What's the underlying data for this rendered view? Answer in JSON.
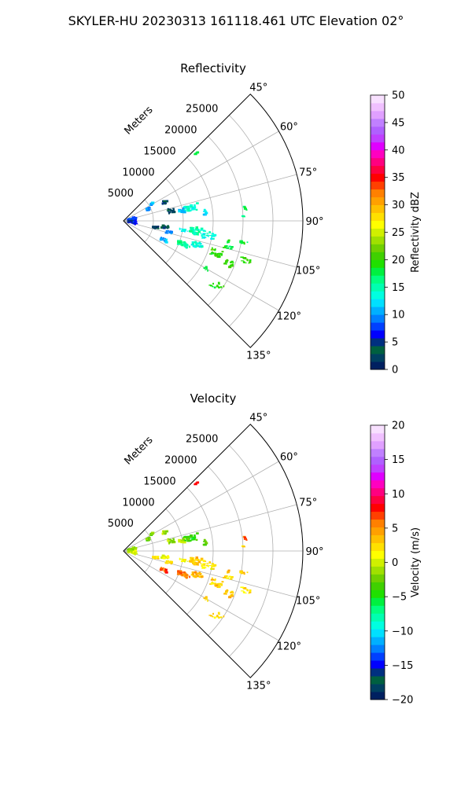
{
  "figure": {
    "suptitle": "SKYLER-HU  20230313  161118.461 UTC Elevation 02°"
  },
  "chart_data": [
    {
      "type": "scatter",
      "subtype": "polar-ppi-sector",
      "title": "Reflectivity",
      "radius_label": "Meters",
      "theta_range_deg": [
        45,
        135
      ],
      "theta_ticks": [
        "45°",
        "60°",
        "75°",
        "90°",
        "105°",
        "120°",
        "135°"
      ],
      "r_range": [
        0,
        30000
      ],
      "r_ticks": [
        5000,
        10000,
        15000,
        20000,
        25000
      ],
      "r_tick_labels": [
        "5000",
        "10000",
        "15000",
        "20000",
        "25000"
      ],
      "grid": true,
      "colorbar": {
        "label": "Reflectivity dBZ",
        "range": [
          0,
          50
        ],
        "ticks": [
          "0",
          "5",
          "10",
          "15",
          "20",
          "25",
          "30",
          "35",
          "40",
          "45",
          "50"
        ],
        "colors": [
          "#002060",
          "#004060",
          "#006040",
          "#003080",
          "#0000ff",
          "#0040ff",
          "#0080ff",
          "#00b0ff",
          "#00e0ff",
          "#00ffe0",
          "#00ffb0",
          "#00ff80",
          "#00f040",
          "#20e000",
          "#40d000",
          "#70d000",
          "#a0e000",
          "#d0f000",
          "#ffff00",
          "#ffe000",
          "#ffc000",
          "#ffa000",
          "#ff8000",
          "#ff4000",
          "#ff0000",
          "#ff0040",
          "#ff0080",
          "#ff00c0",
          "#e000ff",
          "#c040ff",
          "#b060ff",
          "#c080ff",
          "#e0a0ff",
          "#f0c0ff",
          "#f8e0ff"
        ]
      },
      "echo_clusters": [
        {
          "az": 47,
          "r": 16500,
          "ang_spread": 1,
          "r_spread": 400,
          "value": 18,
          "n": 5
        },
        {
          "az": 59,
          "r": 5500,
          "ang_spread": 2,
          "r_spread": 400,
          "value": 11,
          "n": 10
        },
        {
          "az": 66,
          "r": 7500,
          "ang_spread": 2.5,
          "r_spread": 500,
          "value": 4,
          "n": 14
        },
        {
          "az": 65,
          "r": 4500,
          "ang_spread": 3,
          "r_spread": 500,
          "value": 10,
          "n": 10
        },
        {
          "az": 78,
          "r": 8200,
          "ang_spread": 3,
          "r_spread": 600,
          "value": 3,
          "n": 22
        },
        {
          "az": 79,
          "r": 11500,
          "ang_spread": 2.5,
          "r_spread": 1200,
          "value": 14,
          "n": 40
        },
        {
          "az": 84,
          "r": 13500,
          "ang_spread": 2,
          "r_spread": 600,
          "value": 12,
          "n": 12
        },
        {
          "az": 80,
          "r": 10000,
          "ang_spread": 2,
          "r_spread": 500,
          "value": 10,
          "n": 10
        },
        {
          "az": 84,
          "r": 20500,
          "ang_spread": 1,
          "r_spread": 300,
          "value": 18,
          "n": 4
        },
        {
          "az": 88,
          "r": 20000,
          "ang_spread": 0.6,
          "r_spread": 200,
          "value": 15,
          "n": 2
        },
        {
          "az": 80,
          "r": 1500,
          "ang_spread": 10,
          "r_spread": 700,
          "value": 8,
          "n": 40
        },
        {
          "az": 96,
          "r": 1500,
          "ang_spread": 10,
          "r_spread": 700,
          "value": 6,
          "n": 35
        },
        {
          "az": 101,
          "r": 5500,
          "ang_spread": 2.5,
          "r_spread": 500,
          "value": 2,
          "n": 20
        },
        {
          "az": 98,
          "r": 7000,
          "ang_spread": 2,
          "r_spread": 600,
          "value": 4,
          "n": 14
        },
        {
          "az": 104,
          "r": 7800,
          "ang_spread": 2,
          "r_spread": 500,
          "value": 10,
          "n": 10
        },
        {
          "az": 99,
          "r": 10500,
          "ang_spread": 1.5,
          "r_spread": 1000,
          "value": 13,
          "n": 18
        },
        {
          "az": 98,
          "r": 12500,
          "ang_spread": 3,
          "r_spread": 1200,
          "value": 15,
          "n": 40
        },
        {
          "az": 100,
          "r": 14500,
          "ang_spread": 2.5,
          "r_spread": 1000,
          "value": 14,
          "n": 25
        },
        {
          "az": 115,
          "r": 7500,
          "ang_spread": 2,
          "r_spread": 600,
          "value": 11,
          "n": 12
        },
        {
          "az": 111,
          "r": 10800,
          "ang_spread": 2.2,
          "r_spread": 1100,
          "value": 16,
          "n": 40
        },
        {
          "az": 108,
          "r": 13000,
          "ang_spread": 2,
          "r_spread": 900,
          "value": 14,
          "n": 25
        },
        {
          "az": 109,
          "r": 16500,
          "ang_spread": 2,
          "r_spread": 1000,
          "value": 20,
          "n": 28
        },
        {
          "az": 112,
          "r": 19000,
          "ang_spread": 1.5,
          "r_spread": 700,
          "value": 20,
          "n": 18
        },
        {
          "az": 108,
          "r": 21500,
          "ang_spread": 1.2,
          "r_spread": 800,
          "value": 20,
          "n": 14
        },
        {
          "az": 104,
          "r": 18200,
          "ang_spread": 1,
          "r_spread": 800,
          "value": 18,
          "n": 8
        },
        {
          "az": 100,
          "r": 20500,
          "ang_spread": 1,
          "r_spread": 600,
          "value": 18,
          "n": 6
        },
        {
          "az": 101,
          "r": 18000,
          "ang_spread": 1,
          "r_spread": 500,
          "value": 19,
          "n": 5
        },
        {
          "az": 124,
          "r": 19500,
          "ang_spread": 1,
          "r_spread": 800,
          "value": 20,
          "n": 10
        },
        {
          "az": 126,
          "r": 18500,
          "ang_spread": 1,
          "r_spread": 500,
          "value": 18,
          "n": 6
        },
        {
          "az": 120,
          "r": 16000,
          "ang_spread": 1,
          "r_spread": 500,
          "value": 18,
          "n": 5
        }
      ]
    },
    {
      "type": "scatter",
      "subtype": "polar-ppi-sector",
      "title": "Velocity",
      "radius_label": "Meters",
      "theta_range_deg": [
        45,
        135
      ],
      "theta_ticks": [
        "45°",
        "60°",
        "75°",
        "90°",
        "105°",
        "120°",
        "135°"
      ],
      "r_range": [
        0,
        30000
      ],
      "r_ticks": [
        5000,
        10000,
        15000,
        20000,
        25000
      ],
      "r_tick_labels": [
        "5000",
        "10000",
        "15000",
        "20000",
        "25000"
      ],
      "grid": true,
      "colorbar": {
        "label": "Velocity (m/s)",
        "range": [
          -20,
          20
        ],
        "ticks": [
          "−20",
          "−15",
          "−10",
          "−5",
          "0",
          "5",
          "10",
          "15",
          "20"
        ],
        "colors": [
          "#002060",
          "#004060",
          "#006040",
          "#003080",
          "#0000ff",
          "#0040ff",
          "#0080ff",
          "#00b0ff",
          "#00e0ff",
          "#00ffe0",
          "#00ffb0",
          "#00ff80",
          "#00f040",
          "#20e000",
          "#40d000",
          "#70d000",
          "#a0e000",
          "#d0f000",
          "#ffff00",
          "#ffe000",
          "#ffc000",
          "#ffa000",
          "#ff8000",
          "#ff4000",
          "#ff0000",
          "#ff0040",
          "#ff0080",
          "#ff00c0",
          "#e000ff",
          "#c040ff",
          "#b060ff",
          "#c080ff",
          "#e0a0ff",
          "#f0c0ff",
          "#f8e0ff"
        ]
      },
      "echo_clusters": [
        {
          "az": 47,
          "r": 16500,
          "ang_spread": 1,
          "r_spread": 400,
          "value": 8,
          "n": 5
        },
        {
          "az": 59,
          "r": 5500,
          "ang_spread": 2,
          "r_spread": 400,
          "value": -2,
          "n": 10
        },
        {
          "az": 66,
          "r": 7500,
          "ang_spread": 2.5,
          "r_spread": 500,
          "value": -1,
          "n": 14
        },
        {
          "az": 65,
          "r": 4500,
          "ang_spread": 3,
          "r_spread": 500,
          "value": -2,
          "n": 10
        },
        {
          "az": 78,
          "r": 8200,
          "ang_spread": 3,
          "r_spread": 600,
          "value": -1,
          "n": 22
        },
        {
          "az": 79,
          "r": 11500,
          "ang_spread": 2.5,
          "r_spread": 1200,
          "value": -4,
          "n": 40
        },
        {
          "az": 84,
          "r": 13500,
          "ang_spread": 2,
          "r_spread": 600,
          "value": -3,
          "n": 12
        },
        {
          "az": 80,
          "r": 10000,
          "ang_spread": 2,
          "r_spread": 500,
          "value": -1,
          "n": 10
        },
        {
          "az": 84,
          "r": 20500,
          "ang_spread": 1,
          "r_spread": 300,
          "value": 7,
          "n": 4
        },
        {
          "az": 88,
          "r": 20000,
          "ang_spread": 0.6,
          "r_spread": 200,
          "value": 2,
          "n": 2
        },
        {
          "az": 80,
          "r": 1500,
          "ang_spread": 10,
          "r_spread": 700,
          "value": -2,
          "n": 40
        },
        {
          "az": 96,
          "r": 1500,
          "ang_spread": 10,
          "r_spread": 700,
          "value": 0,
          "n": 35
        },
        {
          "az": 101,
          "r": 5500,
          "ang_spread": 2.5,
          "r_spread": 500,
          "value": 2,
          "n": 20
        },
        {
          "az": 98,
          "r": 7000,
          "ang_spread": 2,
          "r_spread": 600,
          "value": 1,
          "n": 14
        },
        {
          "az": 104,
          "r": 7800,
          "ang_spread": 2,
          "r_spread": 500,
          "value": 3,
          "n": 10
        },
        {
          "az": 99,
          "r": 10500,
          "ang_spread": 1.5,
          "r_spread": 1000,
          "value": 1,
          "n": 18
        },
        {
          "az": 98,
          "r": 12500,
          "ang_spread": 3,
          "r_spread": 1200,
          "value": 3,
          "n": 40
        },
        {
          "az": 100,
          "r": 14500,
          "ang_spread": 2.5,
          "r_spread": 1000,
          "value": 2,
          "n": 25
        },
        {
          "az": 115,
          "r": 7500,
          "ang_spread": 2,
          "r_spread": 600,
          "value": 7,
          "n": 12
        },
        {
          "az": 111,
          "r": 10800,
          "ang_spread": 2.2,
          "r_spread": 1100,
          "value": 6,
          "n": 40
        },
        {
          "az": 108,
          "r": 13000,
          "ang_spread": 2,
          "r_spread": 900,
          "value": 4,
          "n": 25
        },
        {
          "az": 109,
          "r": 16500,
          "ang_spread": 2,
          "r_spread": 1000,
          "value": 3,
          "n": 28
        },
        {
          "az": 112,
          "r": 19000,
          "ang_spread": 1.5,
          "r_spread": 700,
          "value": 3,
          "n": 18
        },
        {
          "az": 108,
          "r": 21500,
          "ang_spread": 1.2,
          "r_spread": 800,
          "value": 2,
          "n": 14
        },
        {
          "az": 104,
          "r": 18200,
          "ang_spread": 1,
          "r_spread": 800,
          "value": 2,
          "n": 8
        },
        {
          "az": 100,
          "r": 20500,
          "ang_spread": 1,
          "r_spread": 600,
          "value": 3,
          "n": 6
        },
        {
          "az": 101,
          "r": 18000,
          "ang_spread": 1,
          "r_spread": 500,
          "value": 4,
          "n": 5
        },
        {
          "az": 124,
          "r": 19500,
          "ang_spread": 1,
          "r_spread": 800,
          "value": 3,
          "n": 10
        },
        {
          "az": 126,
          "r": 18500,
          "ang_spread": 1,
          "r_spread": 500,
          "value": 2,
          "n": 6
        },
        {
          "az": 120,
          "r": 16000,
          "ang_spread": 1,
          "r_spread": 500,
          "value": 3,
          "n": 5
        }
      ]
    }
  ]
}
